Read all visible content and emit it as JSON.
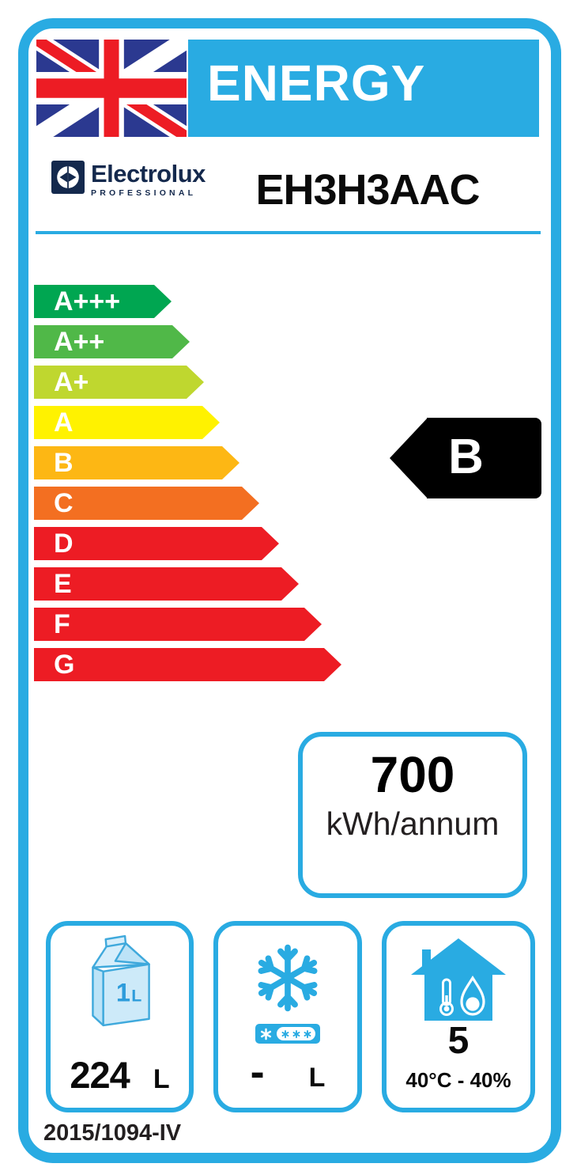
{
  "header": {
    "title": "ENERGY"
  },
  "brand": {
    "name": "Electrolux",
    "subtitle": "PROFESSIONAL",
    "model": "EH3H3AAC"
  },
  "scale": {
    "classes": [
      {
        "label": "A+++",
        "color": "#00A651",
        "body_width": 152
      },
      {
        "label": "A++",
        "color": "#50B848",
        "body_width": 175
      },
      {
        "label": "A+",
        "color": "#BFD72F",
        "body_width": 193
      },
      {
        "label": "A",
        "color": "#FFF200",
        "body_width": 213
      },
      {
        "label": "B",
        "color": "#FDB714",
        "body_width": 238
      },
      {
        "label": "C",
        "color": "#F36F21",
        "body_width": 263
      },
      {
        "label": "D",
        "color": "#ED1C24",
        "body_width": 288
      },
      {
        "label": "E",
        "color": "#ED1C24",
        "body_width": 313
      },
      {
        "label": "F",
        "color": "#ED1C24",
        "body_width": 342
      },
      {
        "label": "G",
        "color": "#ED1C24",
        "body_width": 367
      }
    ]
  },
  "rating": {
    "current_class": "B"
  },
  "consumption": {
    "value": "700",
    "unit": "kWh/annum"
  },
  "features": {
    "chilled_volume": {
      "carton_size": "1",
      "carton_unit": "L",
      "value": "224",
      "unit": "L"
    },
    "frozen_volume": {
      "value": "-",
      "unit": "L"
    },
    "climate_class": {
      "value": "5",
      "condition": "40°C - 40%"
    }
  },
  "footer": {
    "regulation": "2015/1094-IV"
  },
  "colors": {
    "accent_cyan": "#29ABE2",
    "flag_navy": "#2B3990",
    "flag_red": "#ED1C24",
    "brand_navy": "#14294D",
    "rating_black": "#000000"
  }
}
